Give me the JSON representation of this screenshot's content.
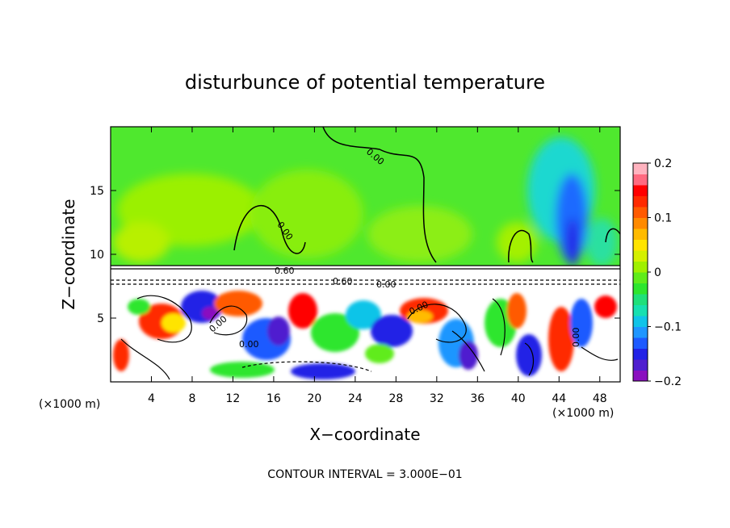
{
  "chart_data": {
    "type": "heatmap",
    "title": "disturbunce of potential temperature",
    "xlabel": "X−coordinate",
    "ylabel": "Z−coordinate",
    "x_unit": "(×1000 m)",
    "x_unit_right": "(×1000 m)",
    "xlim": [
      0,
      50
    ],
    "ylim": [
      0,
      20
    ],
    "x_ticks": [
      4,
      8,
      12,
      16,
      20,
      24,
      28,
      32,
      36,
      40,
      44,
      48
    ],
    "x_tick_labels": [
      "4",
      "8",
      "12",
      "16",
      "20",
      "24",
      "28",
      "32",
      "36",
      "40",
      "44",
      "48"
    ],
    "y_ticks": [
      5,
      10,
      15
    ],
    "y_tick_labels": [
      "5",
      "10",
      "15"
    ],
    "colorbar": {
      "range": [
        -0.2,
        0.2
      ],
      "ticks": [
        -0.2,
        -0.1,
        0,
        0.1,
        0.2
      ],
      "tick_labels": [
        "−0.2",
        "−0.1",
        "0",
        "0.1",
        "0.2"
      ],
      "colors": [
        "#8a0fbf",
        "#4f1fcf",
        "#2222e6",
        "#1e5aff",
        "#1f96ff",
        "#10c4e8",
        "#17e0b0",
        "#1fe07a",
        "#2ee62e",
        "#60ec1a",
        "#a0f000",
        "#d4f000",
        "#ffe400",
        "#ffbb00",
        "#ff8a00",
        "#ff5a00",
        "#ff2a00",
        "#ff0000",
        "#ff6a80",
        "#ffb3bf"
      ]
    },
    "contour_labels": [
      "0.00",
      "0.00",
      "0.60",
      "0.60",
      "0.00",
      "0.00",
      "0.00",
      "0.00",
      "0.00"
    ],
    "contour_interval": "CONTOUR INTERVAL = 3.000E−01",
    "grid": false,
    "legend": "right"
  }
}
